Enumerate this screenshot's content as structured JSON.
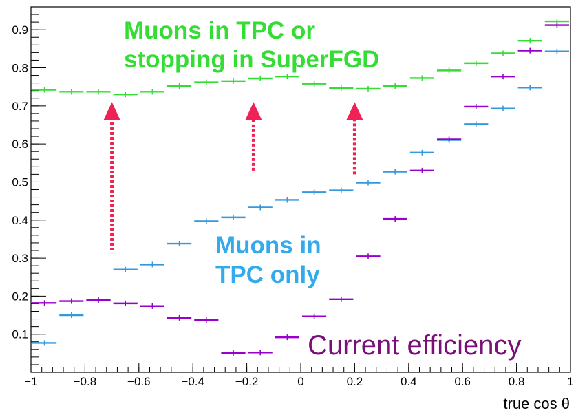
{
  "chart_data": {
    "type": "scatter",
    "title": "",
    "xlabel": "true cos θ",
    "ylabel": "",
    "xlim": [
      -1,
      1
    ],
    "ylim": [
      0.0,
      0.96
    ],
    "xticks": [
      -1,
      -0.8,
      -0.6,
      -0.4,
      -0.2,
      0,
      0.2,
      0.4,
      0.6,
      0.8,
      1
    ],
    "xtick_labels": [
      "−1",
      "−0.8",
      "−0.6",
      "−0.4",
      "−0.2",
      "0",
      "0.2",
      "0.4",
      "0.6",
      "0.8",
      "1"
    ],
    "yticks": [
      0.1,
      0.2,
      0.3,
      0.4,
      0.5,
      0.6,
      0.7,
      0.8,
      0.9
    ],
    "ytick_labels": [
      "0.1",
      "0.2",
      "0.3",
      "0.4",
      "0.5",
      "0.6",
      "0.7",
      "0.8",
      "0.9"
    ],
    "grid": false,
    "bin_edges": [
      -1,
      -0.9,
      -0.8,
      -0.7,
      -0.6,
      -0.5,
      -0.4,
      -0.3,
      -0.2,
      -0.1,
      0,
      0.1,
      0.2,
      0.3,
      0.4,
      0.5,
      0.6,
      0.7,
      0.8,
      0.9,
      1
    ],
    "series": [
      {
        "key": "green",
        "color": "#33dd33",
        "values": [
          0.742,
          0.737,
          0.737,
          0.73,
          0.737,
          0.752,
          0.762,
          0.765,
          0.772,
          0.777,
          0.758,
          0.747,
          0.745,
          0.752,
          0.773,
          0.793,
          0.812,
          0.838,
          0.871,
          0.922
        ]
      },
      {
        "key": "blue",
        "color": "#3399dd",
        "values": [
          0.077,
          0.15,
          0.19,
          0.27,
          0.283,
          0.338,
          0.397,
          0.407,
          0.433,
          0.453,
          0.473,
          0.478,
          0.498,
          0.527,
          0.577,
          0.61,
          0.652,
          0.693,
          0.748,
          0.843
        ]
      },
      {
        "key": "purple",
        "color": "#9900cc",
        "values": [
          0.182,
          0.187,
          0.19,
          0.181,
          0.174,
          0.143,
          0.137,
          0.051,
          0.052,
          0.092,
          0.147,
          0.192,
          0.305,
          0.403,
          0.53,
          0.612,
          0.698,
          0.777,
          0.845,
          0.912
        ]
      }
    ],
    "annotations": {
      "green_line1": "Muons in TPC or",
      "green_line2": "stopping in SuperFGD",
      "blue_line1": "Muons in",
      "blue_line2": "TPC only",
      "purple": "Current efficiency"
    },
    "arrows": [
      {
        "x": -0.7,
        "y_from": 0.32,
        "y_to": 0.71,
        "color": "#ee2255"
      },
      {
        "x": -0.175,
        "y_from": 0.53,
        "y_to": 0.71,
        "color": "#ee2255"
      },
      {
        "x": 0.2,
        "y_from": 0.52,
        "y_to": 0.71,
        "color": "#ee2255"
      }
    ]
  }
}
